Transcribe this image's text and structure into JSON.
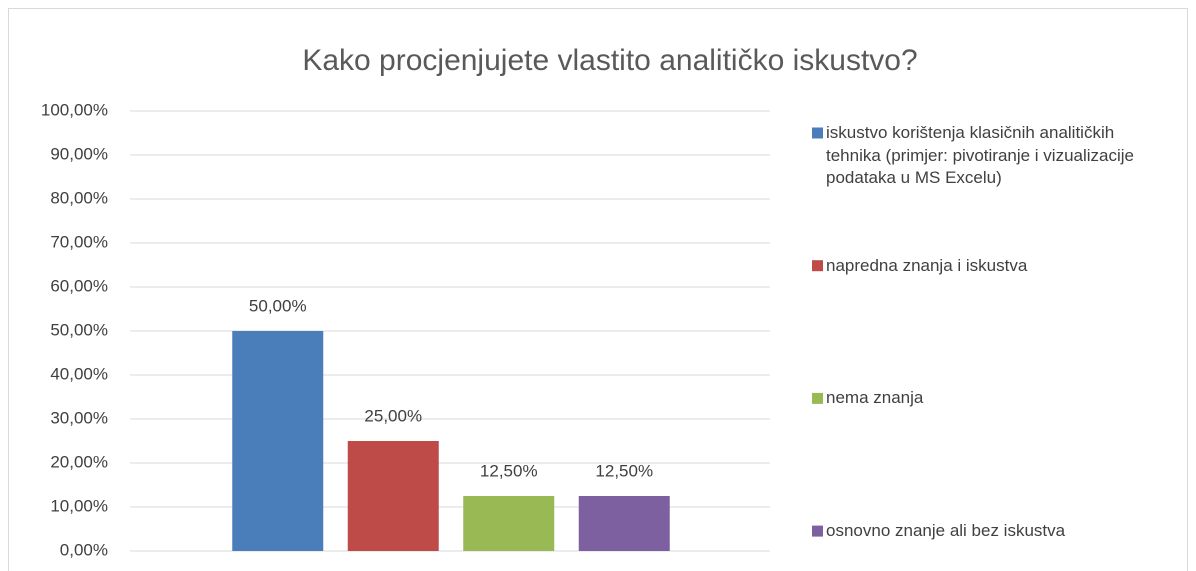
{
  "chart_data": {
    "type": "bar",
    "title": "Kako procjenjujete vlastito analitičko iskustvo?",
    "categories": [
      null
    ],
    "series": [
      {
        "name": "iskustvo korištenja klasičnih analitičkih tehnika (primjer: pivotiranje i vizualizacije podataka u MS Excelu)",
        "color": "#4a7ebb",
        "values": [
          50
        ],
        "value_labels": [
          "50,00%"
        ]
      },
      {
        "name": "napredna znanja i iskustva",
        "color": "#be4b48",
        "values": [
          25
        ],
        "value_labels": [
          "25,00%"
        ]
      },
      {
        "name": "nema znanja",
        "color": "#98b954",
        "values": [
          12.5
        ],
        "value_labels": [
          "12,50%"
        ]
      },
      {
        "name": "osnovno znanje ali bez iskustva",
        "color": "#7d60a0",
        "values": [
          12.5
        ],
        "value_labels": [
          "12,50%"
        ]
      }
    ],
    "ylim": [
      0,
      100
    ],
    "yticks": [
      {
        "value": 0,
        "label": "0,00%"
      },
      {
        "value": 10,
        "label": "10,00%"
      },
      {
        "value": 20,
        "label": "20,00%"
      },
      {
        "value": 30,
        "label": "30,00%"
      },
      {
        "value": 40,
        "label": "40,00%"
      },
      {
        "value": 50,
        "label": "50,00%"
      },
      {
        "value": 60,
        "label": "60,00%"
      },
      {
        "value": 70,
        "label": "70,00%"
      },
      {
        "value": 80,
        "label": "80,00%"
      },
      {
        "value": 90,
        "label": "90,00%"
      },
      {
        "value": 100,
        "label": "100,00%"
      }
    ],
    "grid": true,
    "legend": "right"
  }
}
